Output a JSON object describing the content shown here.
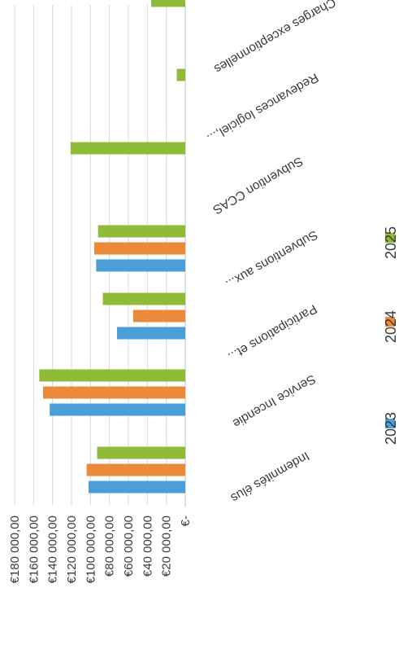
{
  "chart_data": {
    "type": "bar",
    "orientation": "horizontal",
    "categories": [
      "Indemnités élus",
      "Service Incendie",
      "Participations et...",
      "Subventions aux...",
      "Subvention CCAS",
      "Redevances logiciel,...",
      "Charges exceptionnelles"
    ],
    "series": [
      {
        "name": "2023",
        "values": [
          102000,
          143000,
          72000,
          94000,
          null,
          null,
          null
        ]
      },
      {
        "name": "2024",
        "values": [
          104000,
          150000,
          55000,
          96000,
          null,
          null,
          null
        ]
      },
      {
        "name": "2025",
        "values": [
          93000,
          154000,
          87000,
          92000,
          121000,
          9000,
          36000
        ]
      }
    ],
    "xlim": [
      0,
      180000
    ],
    "x_ticks": [
      "€-",
      "€20 000,00",
      "€40 000,00",
      "€60 000,00",
      "€80 000,00",
      "€100 000,00",
      "€120 000,00",
      "€140 000,00",
      "€160 000,00",
      "€180 000,00"
    ],
    "grid": true,
    "legend_position": "bottom",
    "colors": {
      "2023": "#4a9fd8",
      "2024": "#ec8a3c",
      "2025": "#8fbb38"
    }
  }
}
